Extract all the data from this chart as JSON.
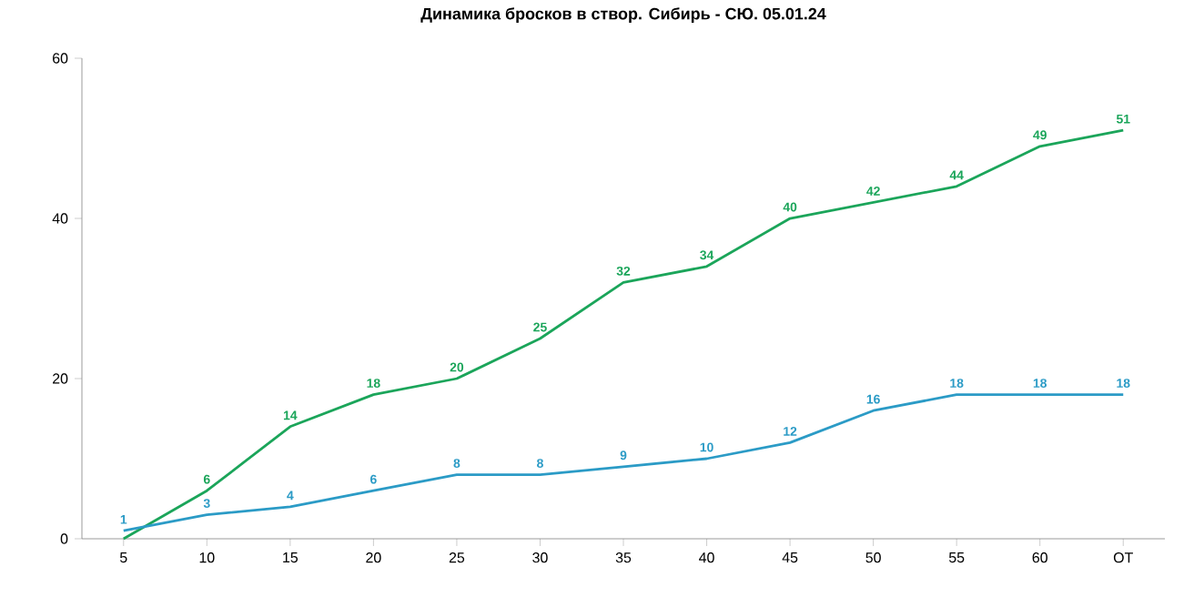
{
  "chart_data": {
    "type": "line",
    "title": "Динамика бросков в створ. Сибирь - СЮ. 05.01.24",
    "categories": [
      "5",
      "10",
      "15",
      "20",
      "25",
      "30",
      "35",
      "40",
      "45",
      "50",
      "55",
      "60",
      "OT"
    ],
    "ylim": [
      0,
      60
    ],
    "yticks": [
      0,
      20,
      40,
      60
    ],
    "line_style": "solid",
    "series": [
      {
        "color": "#1ba55a",
        "values": [
          0,
          6,
          14,
          18,
          20,
          25,
          32,
          34,
          40,
          42,
          44,
          49,
          51
        ],
        "value_labels": [
          null,
          "6",
          "14",
          "18",
          "20",
          "25",
          "32",
          "34",
          "40",
          "42",
          "44",
          "49",
          "51"
        ]
      },
      {
        "color": "#2b9bc6",
        "values": [
          1,
          3,
          4,
          6,
          8,
          8,
          9,
          10,
          12,
          16,
          18,
          18,
          18
        ],
        "value_labels": [
          "1",
          "3",
          "4",
          "6",
          "8",
          "8",
          "9",
          "10",
          "12",
          "16",
          "18",
          "18",
          "18"
        ]
      }
    ]
  }
}
